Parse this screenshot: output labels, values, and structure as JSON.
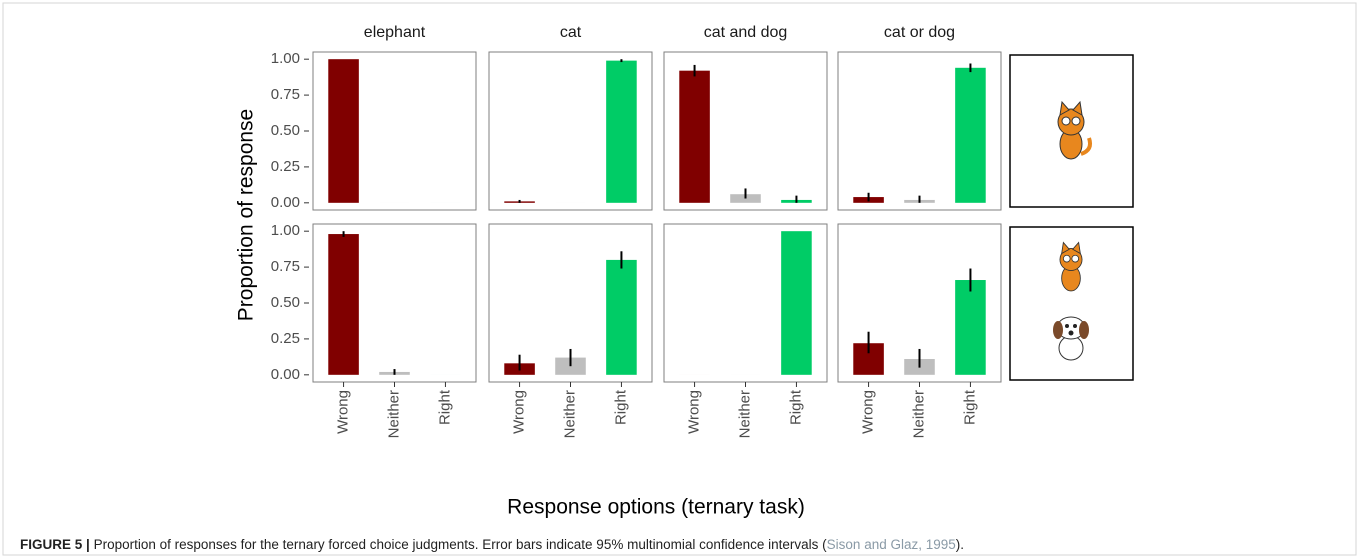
{
  "chart_data": {
    "type": "bar",
    "ylabel": "Proportion of response",
    "xlabel": "Response options (ternary task)",
    "columns": [
      "elephant",
      "cat",
      "cat and dog",
      "cat or dog"
    ],
    "categories": [
      "Wrong",
      "Neither",
      "Right"
    ],
    "colors": [
      "#800000",
      "#bebebe",
      "#00cc66"
    ],
    "ylim": [
      -0.05,
      1.05
    ],
    "yticks": [
      {
        "value": 0,
        "label": "0.00"
      },
      {
        "value": 0.25,
        "label": "0.25"
      },
      {
        "value": 0.5,
        "label": "0.50"
      },
      {
        "value": 0.75,
        "label": "0.75"
      },
      {
        "value": 1,
        "label": "1.00"
      }
    ],
    "rows": [
      {
        "panels": [
          {
            "values": [
              1.0,
              0,
              0
            ],
            "errors": [
              null,
              null,
              null
            ]
          },
          {
            "values": [
              0.01,
              0,
              0.99
            ],
            "errors": [
              [
                0,
                0.02
              ],
              null,
              [
                0.98,
                1.0
              ]
            ]
          },
          {
            "values": [
              0.92,
              0.06,
              0.02
            ],
            "errors": [
              [
                0.88,
                0.96
              ],
              [
                0.03,
                0.1
              ],
              [
                0,
                0.05
              ]
            ]
          },
          {
            "values": [
              0.04,
              0.02,
              0.94
            ],
            "errors": [
              [
                0.01,
                0.07
              ],
              [
                0,
                0.05
              ],
              [
                0.91,
                0.97
              ]
            ]
          }
        ]
      },
      {
        "panels": [
          {
            "values": [
              0.98,
              0.02,
              0
            ],
            "errors": [
              [
                0.96,
                1.0
              ],
              [
                0,
                0.04
              ],
              null
            ]
          },
          {
            "values": [
              0.08,
              0.12,
              0.8
            ],
            "errors": [
              [
                0.03,
                0.14
              ],
              [
                0.06,
                0.18
              ],
              [
                0.74,
                0.86
              ]
            ]
          },
          {
            "values": [
              0,
              0,
              1.0
            ],
            "errors": [
              null,
              null,
              null
            ]
          },
          {
            "values": [
              0.22,
              0.11,
              0.66
            ],
            "errors": [
              [
                0.15,
                0.3
              ],
              [
                0.05,
                0.18
              ],
              [
                0.58,
                0.74
              ]
            ]
          }
        ]
      }
    ]
  },
  "figure": {
    "caption_label": "FIGURE 5 |",
    "caption_text": "Proportion of responses for the ternary forced choice judgments. Error bars indicate 95% multinomial confidence intervals (",
    "caption_cite": "Sison and Glaz, 1995",
    "caption_end": ")."
  }
}
